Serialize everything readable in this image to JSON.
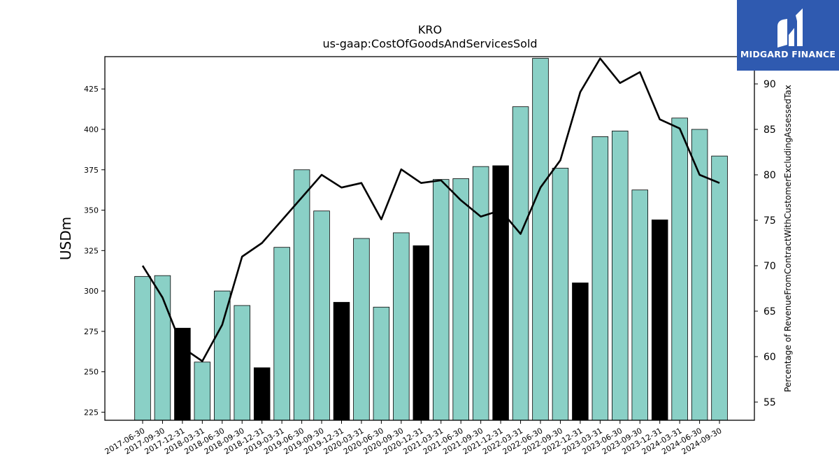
{
  "chart_data": {
    "type": "bar",
    "title": "KRO",
    "subtitle": "us-gaap:CostOfGoodsAndServicesSold",
    "ylabel": "USDm",
    "y2label": "Percentage of RevenueFromContractWithCustomerExcludingAssessedTax",
    "ylim": [
      220,
      445
    ],
    "y2lim": [
      53,
      93
    ],
    "yticks": [
      225,
      250,
      275,
      300,
      325,
      350,
      375,
      400,
      425
    ],
    "y2ticks": [
      55,
      60,
      65,
      70,
      75,
      80,
      85,
      90
    ],
    "categories": [
      "2017-06-30",
      "2017-09-30",
      "2017-12-31",
      "2018-03-31",
      "2018-06-30",
      "2018-09-30",
      "2018-12-31",
      "2019-03-31",
      "2019-06-30",
      "2019-09-30",
      "2019-12-31",
      "2020-03-31",
      "2020-06-30",
      "2020-09-30",
      "2020-12-31",
      "2021-03-31",
      "2021-06-30",
      "2021-09-30",
      "2021-12-31",
      "2022-03-31",
      "2022-06-30",
      "2022-09-30",
      "2022-12-31",
      "2023-03-31",
      "2023-06-30",
      "2023-09-30",
      "2023-12-31",
      "2024-03-31",
      "2024-06-30",
      "2024-09-30"
    ],
    "series": [
      {
        "kind": "bar",
        "values": [
          309,
          309.5,
          277,
          256,
          300,
          291,
          252.5,
          327,
          375,
          349.5,
          293,
          332.5,
          290,
          336,
          328,
          369,
          369.5,
          377,
          377.5,
          414,
          444,
          376,
          305,
          395.5,
          399,
          362.5,
          344,
          407,
          400,
          383.5
        ],
        "colors": [
          "#8ad0c6",
          "#8ad0c6",
          "#000000",
          "#8ad0c6",
          "#8ad0c6",
          "#8ad0c6",
          "#000000",
          "#8ad0c6",
          "#8ad0c6",
          "#8ad0c6",
          "#000000",
          "#8ad0c6",
          "#8ad0c6",
          "#8ad0c6",
          "#000000",
          "#8ad0c6",
          "#8ad0c6",
          "#8ad0c6",
          "#000000",
          "#8ad0c6",
          "#8ad0c6",
          "#8ad0c6",
          "#000000",
          "#8ad0c6",
          "#8ad0c6",
          "#8ad0c6",
          "#000000",
          "#8ad0c6",
          "#8ad0c6",
          "#8ad0c6"
        ]
      },
      {
        "kind": "line",
        "axis": "right",
        "color": "#000000",
        "values": [
          70,
          66.5,
          61,
          59.5,
          63.5,
          71,
          72.5,
          75,
          77.5,
          80,
          78.6,
          79.1,
          75.1,
          80.6,
          79.1,
          79.4,
          77.2,
          75.4,
          76.1,
          73.5,
          78.6,
          81.6,
          89.1,
          92.8,
          90.1,
          91.3,
          86.1,
          85.1,
          80,
          79.1
        ]
      }
    ],
    "grid": false
  },
  "logo": {
    "text": "MIDGARD FINANCE",
    "background": "#2f5ab0"
  }
}
